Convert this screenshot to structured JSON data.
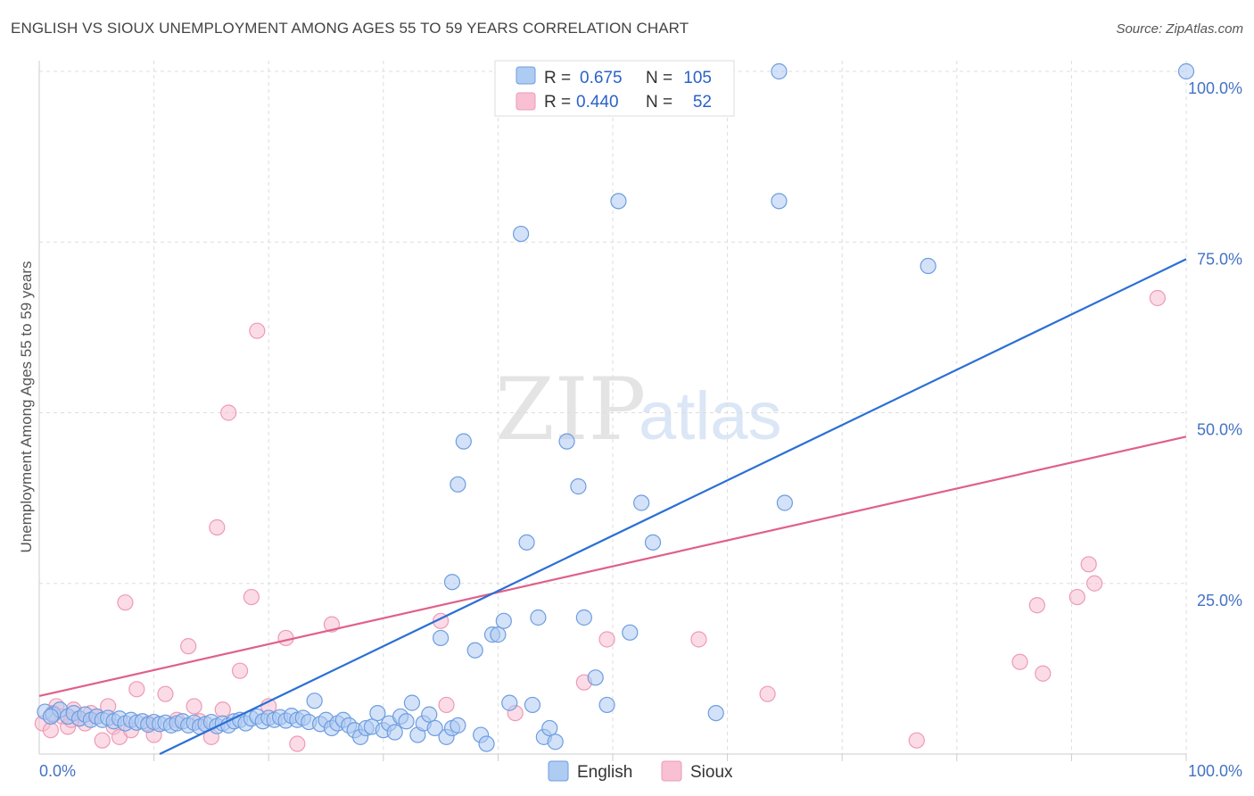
{
  "header": {
    "title": "ENGLISH VS SIOUX UNEMPLOYMENT AMONG AGES 55 TO 59 YEARS CORRELATION CHART",
    "source": "Source: ZipAtlas.com"
  },
  "watermark": {
    "zip": "ZIP",
    "atlas": "atlas"
  },
  "legend": {
    "rows": [
      {
        "r_label": "R =",
        "r_value": "0.675",
        "n_label": "N =",
        "n_value": "105"
      },
      {
        "r_label": "R =",
        "r_value": "0.440",
        "n_label": "N =",
        "n_value": "52"
      }
    ]
  },
  "bottom_legend": {
    "items": [
      "English",
      "Sioux"
    ]
  },
  "colors": {
    "english_fill": "#aecbf2",
    "english_stroke": "#6d9de0",
    "english_line": "#2a6fd6",
    "sioux_fill": "#f8c0d2",
    "sioux_stroke": "#ee9ab5",
    "sioux_line": "#e0608a",
    "grid": "#dddddd",
    "tick_text": "#4472c4"
  },
  "chart_data": {
    "type": "scatter",
    "title": "ENGLISH VS SIOUX UNEMPLOYMENT AMONG AGES 55 TO 59 YEARS CORRELATION CHART",
    "xlabel": "",
    "ylabel": "Unemployment Among Ages 55 to 59 years",
    "xlim": [
      0,
      100
    ],
    "ylim": [
      0,
      100
    ],
    "x_tick_labels": [
      "0.0%",
      "100.0%"
    ],
    "y_tick_labels": [
      "25.0%",
      "50.0%",
      "75.0%",
      "100.0%"
    ],
    "y_ticks": [
      25,
      50,
      75,
      100
    ],
    "grid": true,
    "legend_position": "top-center",
    "series": [
      {
        "name": "English",
        "r": 0.675,
        "n": 105,
        "trendline": {
          "x": [
            10.5,
            100
          ],
          "y": [
            0,
            72.5
          ]
        },
        "points": [
          [
            0.5,
            6.2
          ],
          [
            1.2,
            5.8
          ],
          [
            1.8,
            6.5
          ],
          [
            2.5,
            5.5
          ],
          [
            3.0,
            6.0
          ],
          [
            3.5,
            5.2
          ],
          [
            4.0,
            5.8
          ],
          [
            4.5,
            5.0
          ],
          [
            5.0,
            5.5
          ],
          [
            5.5,
            5.0
          ],
          [
            6.0,
            5.3
          ],
          [
            6.5,
            4.8
          ],
          [
            7.0,
            5.2
          ],
          [
            7.5,
            4.5
          ],
          [
            8.0,
            5.0
          ],
          [
            8.5,
            4.6
          ],
          [
            9.0,
            4.8
          ],
          [
            9.5,
            4.3
          ],
          [
            10.0,
            4.7
          ],
          [
            10.5,
            4.4
          ],
          [
            11.0,
            4.6
          ],
          [
            11.5,
            4.2
          ],
          [
            12.0,
            4.5
          ],
          [
            12.5,
            4.8
          ],
          [
            13.0,
            4.2
          ],
          [
            13.5,
            4.6
          ],
          [
            14.0,
            4.0
          ],
          [
            14.5,
            4.4
          ],
          [
            15.0,
            4.7
          ],
          [
            15.5,
            4.1
          ],
          [
            16.0,
            4.5
          ],
          [
            16.5,
            4.2
          ],
          [
            17.0,
            4.8
          ],
          [
            17.5,
            5.0
          ],
          [
            18.0,
            4.5
          ],
          [
            18.5,
            5.2
          ],
          [
            19.0,
            5.5
          ],
          [
            19.5,
            4.8
          ],
          [
            20.0,
            5.3
          ],
          [
            20.5,
            5.0
          ],
          [
            21.0,
            5.4
          ],
          [
            21.5,
            4.9
          ],
          [
            22.0,
            5.6
          ],
          [
            22.5,
            5.0
          ],
          [
            23.0,
            5.3
          ],
          [
            23.5,
            4.7
          ],
          [
            24.0,
            7.8
          ],
          [
            24.5,
            4.4
          ],
          [
            25.0,
            5.0
          ],
          [
            25.5,
            3.8
          ],
          [
            26.0,
            4.5
          ],
          [
            26.5,
            5.0
          ],
          [
            27.0,
            4.2
          ],
          [
            27.5,
            3.5
          ],
          [
            28.0,
            2.5
          ],
          [
            28.5,
            3.8
          ],
          [
            29.0,
            4.0
          ],
          [
            29.5,
            6.0
          ],
          [
            30.0,
            3.5
          ],
          [
            30.5,
            4.5
          ],
          [
            31.0,
            3.2
          ],
          [
            31.5,
            5.5
          ],
          [
            32.0,
            4.8
          ],
          [
            32.5,
            7.5
          ],
          [
            33.0,
            2.8
          ],
          [
            33.5,
            4.5
          ],
          [
            34.0,
            5.8
          ],
          [
            34.5,
            3.8
          ],
          [
            35.0,
            17.0
          ],
          [
            35.5,
            2.5
          ],
          [
            36.0,
            3.8
          ],
          [
            36.5,
            4.2
          ],
          [
            36.0,
            25.2
          ],
          [
            36.5,
            39.5
          ],
          [
            37.0,
            45.8
          ],
          [
            38.0,
            15.2
          ],
          [
            38.5,
            2.8
          ],
          [
            39.0,
            1.5
          ],
          [
            39.5,
            17.5
          ],
          [
            40.0,
            17.5
          ],
          [
            40.5,
            19.5
          ],
          [
            41.0,
            7.5
          ],
          [
            42.0,
            76.2
          ],
          [
            42.5,
            31.0
          ],
          [
            43.0,
            7.2
          ],
          [
            43.5,
            20.0
          ],
          [
            44.0,
            2.5
          ],
          [
            44.5,
            3.8
          ],
          [
            45.0,
            1.8
          ],
          [
            46.0,
            45.8
          ],
          [
            47.0,
            39.2
          ],
          [
            47.5,
            20.0
          ],
          [
            48.5,
            11.2
          ],
          [
            49.5,
            7.2
          ],
          [
            50.5,
            81.0
          ],
          [
            51.5,
            17.8
          ],
          [
            52.5,
            36.8
          ],
          [
            53.5,
            31.0
          ],
          [
            59.0,
            6.0
          ],
          [
            64.5,
            100.0
          ],
          [
            64.5,
            81.0
          ],
          [
            65.0,
            36.8
          ],
          [
            77.5,
            71.5
          ],
          [
            100.0,
            100.0
          ],
          [
            1.0,
            5.5
          ]
        ]
      },
      {
        "name": "Sioux",
        "r": 0.44,
        "n": 52,
        "trendline": {
          "x": [
            0,
            100
          ],
          "y": [
            8.5,
            46.5
          ]
        },
        "points": [
          [
            0.3,
            4.5
          ],
          [
            1.0,
            3.5
          ],
          [
            1.5,
            7.0
          ],
          [
            2.0,
            5.5
          ],
          [
            2.5,
            4.0
          ],
          [
            3.0,
            6.5
          ],
          [
            3.5,
            5.2
          ],
          [
            4.0,
            4.5
          ],
          [
            4.5,
            6.0
          ],
          [
            5.0,
            5.5
          ],
          [
            5.5,
            2.0
          ],
          [
            6.0,
            7.0
          ],
          [
            6.5,
            4.0
          ],
          [
            7.0,
            2.5
          ],
          [
            7.5,
            22.2
          ],
          [
            8.5,
            9.5
          ],
          [
            9.5,
            4.5
          ],
          [
            10.0,
            2.8
          ],
          [
            11.0,
            8.8
          ],
          [
            12.0,
            5.0
          ],
          [
            13.0,
            15.8
          ],
          [
            13.5,
            7.0
          ],
          [
            14.0,
            4.8
          ],
          [
            15.0,
            2.5
          ],
          [
            15.5,
            33.2
          ],
          [
            16.0,
            6.5
          ],
          [
            16.5,
            50.0
          ],
          [
            17.5,
            12.2
          ],
          [
            18.5,
            23.0
          ],
          [
            19.0,
            62.0
          ],
          [
            20.0,
            7.0
          ],
          [
            21.5,
            17.0
          ],
          [
            22.5,
            1.5
          ],
          [
            25.5,
            19.0
          ],
          [
            35.0,
            19.5
          ],
          [
            35.5,
            7.2
          ],
          [
            41.5,
            6.0
          ],
          [
            47.5,
            10.5
          ],
          [
            49.5,
            16.8
          ],
          [
            57.5,
            16.8
          ],
          [
            63.5,
            8.8
          ],
          [
            76.5,
            2.0
          ],
          [
            85.5,
            13.5
          ],
          [
            87.0,
            21.8
          ],
          [
            87.5,
            11.8
          ],
          [
            90.5,
            23.0
          ],
          [
            91.5,
            27.8
          ],
          [
            92.0,
            25.0
          ],
          [
            97.5,
            66.8
          ],
          [
            1.2,
            6.0
          ],
          [
            2.8,
            5.0
          ],
          [
            8.0,
            3.5
          ]
        ]
      }
    ]
  }
}
